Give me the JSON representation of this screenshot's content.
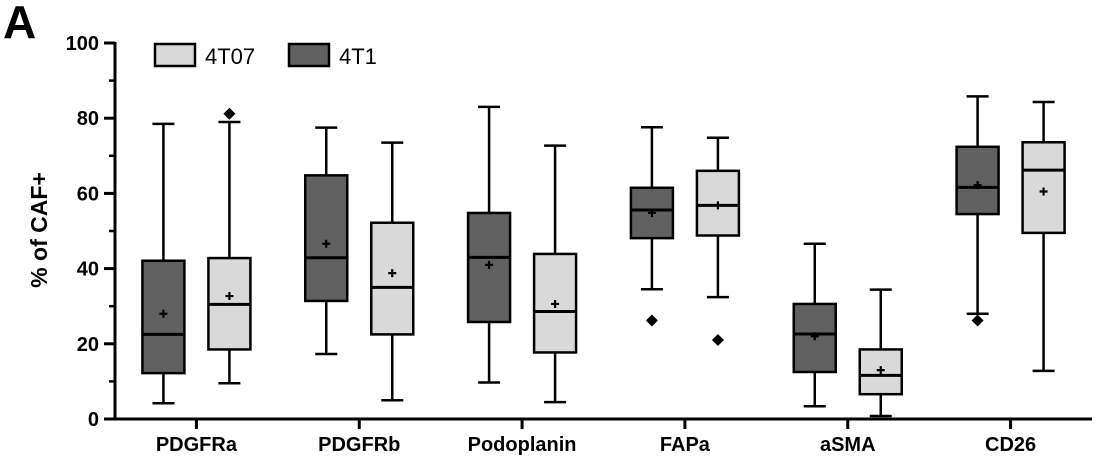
{
  "panel_label": "A",
  "chart_data": {
    "type": "box",
    "title": "",
    "ylabel": "% of CAF+",
    "xlabel": "",
    "ylim": [
      0,
      100
    ],
    "yticks": [
      0,
      20,
      40,
      60,
      80,
      100
    ],
    "categories": [
      "PDGFRa",
      "PDGFRb",
      "Podoplanin",
      "FAPa",
      "aSMA",
      "CD26"
    ],
    "legend": {
      "position": "top-left",
      "entries": [
        "4T07",
        "4T1"
      ]
    },
    "colors": {
      "4T07": "#d9d9d9",
      "4T1": "#606060",
      "stroke": "#000000"
    },
    "series": [
      {
        "name": "4T07",
        "boxes": [
          {
            "category": "PDGFRa",
            "whisker_low": 9.5,
            "q1": 18.5,
            "median": 30.5,
            "q3": 42.8,
            "whisker_high": 79.0,
            "mean": 32.7,
            "outliers": [
              81.2
            ]
          },
          {
            "category": "PDGFRb",
            "whisker_low": 5.0,
            "q1": 22.5,
            "median": 35.0,
            "q3": 52.2,
            "whisker_high": 73.5,
            "mean": 38.8,
            "outliers": []
          },
          {
            "category": "Podoplanin",
            "whisker_low": 4.5,
            "q1": 17.7,
            "median": 28.6,
            "q3": 43.9,
            "whisker_high": 72.7,
            "mean": 30.6,
            "outliers": []
          },
          {
            "category": "FAPa",
            "whisker_low": 32.4,
            "q1": 48.8,
            "median": 56.8,
            "q3": 66.0,
            "whisker_high": 74.8,
            "mean": 56.8,
            "outliers": [
              21.0
            ]
          },
          {
            "category": "aSMA",
            "whisker_low": 0.8,
            "q1": 6.6,
            "median": 11.6,
            "q3": 18.5,
            "whisker_high": 34.4,
            "mean": 13.0,
            "outliers": []
          },
          {
            "category": "CD26",
            "whisker_low": 12.8,
            "q1": 49.5,
            "median": 66.2,
            "q3": 73.6,
            "whisker_high": 84.3,
            "mean": 60.5,
            "outliers": []
          }
        ]
      },
      {
        "name": "4T1",
        "boxes": [
          {
            "category": "PDGFRa",
            "whisker_low": 4.2,
            "q1": 12.2,
            "median": 22.5,
            "q3": 42.1,
            "whisker_high": 78.5,
            "mean": 28.0,
            "outliers": []
          },
          {
            "category": "PDGFRb",
            "whisker_low": 17.3,
            "q1": 31.4,
            "median": 42.9,
            "q3": 64.8,
            "whisker_high": 77.5,
            "mean": 46.6,
            "outliers": []
          },
          {
            "category": "Podoplanin",
            "whisker_low": 9.7,
            "q1": 25.8,
            "median": 43.0,
            "q3": 54.8,
            "whisker_high": 83.0,
            "mean": 41.0,
            "outliers": []
          },
          {
            "category": "FAPa",
            "whisker_low": 34.5,
            "q1": 48.1,
            "median": 55.6,
            "q3": 61.5,
            "whisker_high": 77.6,
            "mean": 54.8,
            "outliers": [
              26.2
            ]
          },
          {
            "category": "aSMA",
            "whisker_low": 3.4,
            "q1": 12.5,
            "median": 22.6,
            "q3": 30.6,
            "whisker_high": 46.6,
            "mean": 22.0,
            "outliers": []
          },
          {
            "category": "CD26",
            "whisker_low": 28.0,
            "q1": 54.5,
            "median": 61.6,
            "q3": 72.4,
            "whisker_high": 85.8,
            "mean": 62.2,
            "outliers": [
              26.2
            ]
          }
        ]
      }
    ],
    "order_per_category": {
      "PDGFRa": [
        "4T1",
        "4T07"
      ],
      "PDGFRb": [
        "4T1",
        "4T07"
      ],
      "Podoplanin": [
        "4T1",
        "4T07"
      ],
      "FAPa": [
        "4T1",
        "4T07"
      ],
      "aSMA": [
        "4T1",
        "4T07"
      ],
      "CD26": [
        "4T1",
        "4T07"
      ]
    },
    "grid": false
  }
}
